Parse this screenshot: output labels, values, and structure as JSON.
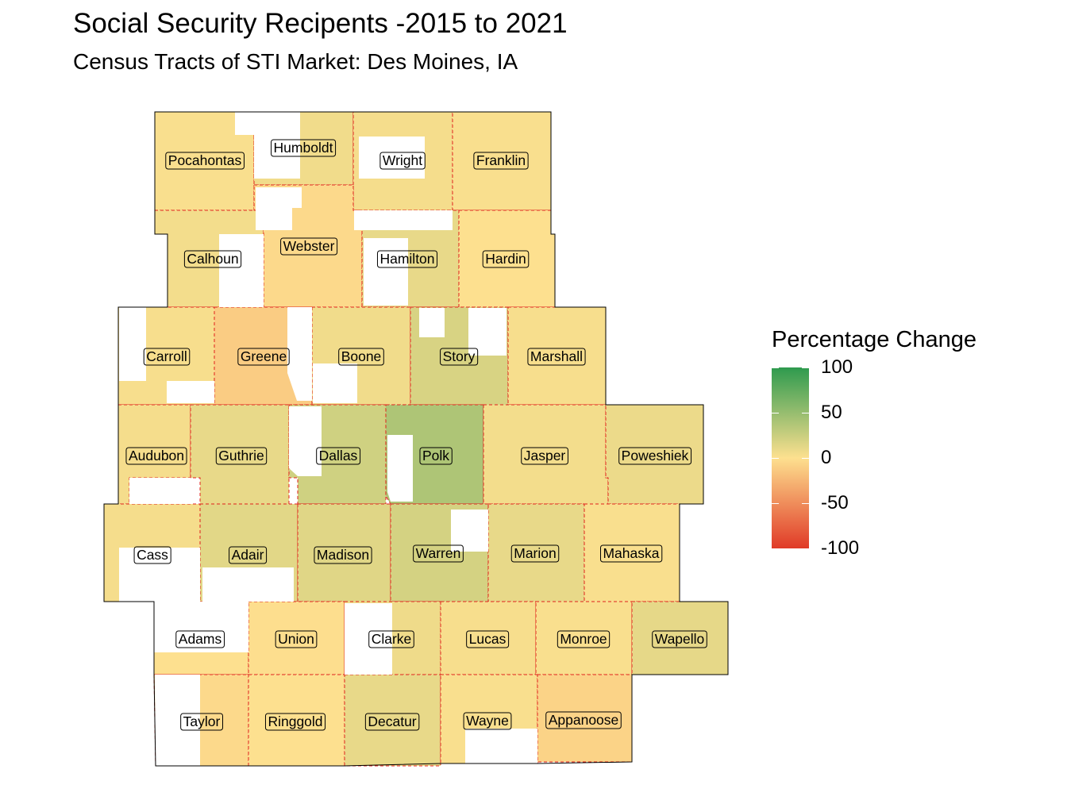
{
  "title": "Social Security Recipents -2015 to 2021",
  "subtitle": "Census Tracts of STI Market: Des Moines, IA",
  "legend": {
    "title": "Percentage Change",
    "ticks": [
      {
        "label": "100",
        "value": 100
      },
      {
        "label": "50",
        "value": 50
      },
      {
        "label": "0",
        "value": 0
      },
      {
        "label": "-50",
        "value": -50
      },
      {
        "label": "-100",
        "value": -100
      }
    ],
    "colors": {
      "low": "#e03a27",
      "mid": "#fde08f",
      "high": "#2e9a4e"
    }
  },
  "map_style": {
    "county_border": "#e0201c",
    "outline": "#000000",
    "no_data": "#ffffff"
  },
  "counties": [
    {
      "name": "Pocahontas",
      "value": 2
    },
    {
      "name": "Humboldt",
      "value": 6
    },
    {
      "name": "Wright",
      "value": 4
    },
    {
      "name": "Franklin",
      "value": 2
    },
    {
      "name": "Calhoun",
      "value": 5
    },
    {
      "name": "Webster",
      "value": -4
    },
    {
      "name": "Hamilton",
      "value": 10
    },
    {
      "name": "Hardin",
      "value": 0
    },
    {
      "name": "Carroll",
      "value": 3
    },
    {
      "name": "Greene",
      "value": -12
    },
    {
      "name": "Boone",
      "value": 6
    },
    {
      "name": "Story",
      "value": 18
    },
    {
      "name": "Marshall",
      "value": 3
    },
    {
      "name": "Audubon",
      "value": 4
    },
    {
      "name": "Guthrie",
      "value": 10
    },
    {
      "name": "Dallas",
      "value": 22
    },
    {
      "name": "Polk",
      "value": 38
    },
    {
      "name": "Jasper",
      "value": 5
    },
    {
      "name": "Poweshiek",
      "value": 8
    },
    {
      "name": "Cass",
      "value": 4
    },
    {
      "name": "Adair",
      "value": 13
    },
    {
      "name": "Madison",
      "value": 14
    },
    {
      "name": "Warren",
      "value": 20
    },
    {
      "name": "Marion",
      "value": 10
    },
    {
      "name": "Mahaska",
      "value": 2
    },
    {
      "name": "Adams",
      "value": 0
    },
    {
      "name": "Union",
      "value": -1
    },
    {
      "name": "Clarke",
      "value": 7
    },
    {
      "name": "Lucas",
      "value": 3
    },
    {
      "name": "Monroe",
      "value": 2
    },
    {
      "name": "Wapello",
      "value": 11
    },
    {
      "name": "Taylor",
      "value": -4
    },
    {
      "name": "Ringgold",
      "value": 0
    },
    {
      "name": "Decatur",
      "value": 10
    },
    {
      "name": "Wayne",
      "value": 2
    },
    {
      "name": "Appanoose",
      "value": -8
    }
  ]
}
